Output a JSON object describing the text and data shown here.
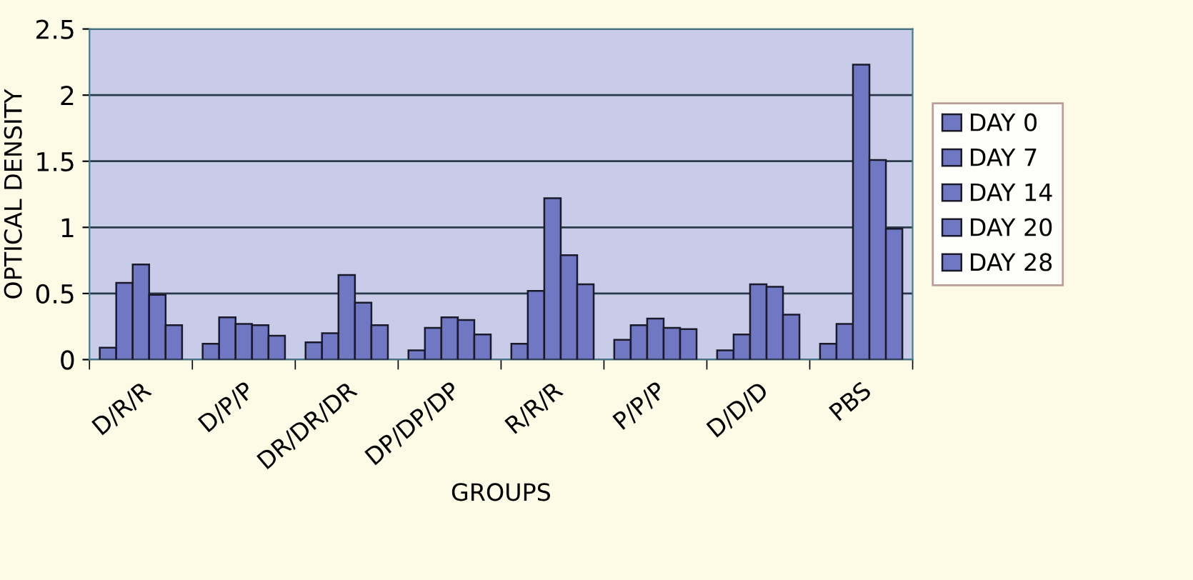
{
  "chart_data": {
    "type": "bar",
    "xlabel": "GROUPS",
    "ylabel": "OPTICAL DENSITY",
    "categories": [
      "D/R/R",
      "D/P/P",
      "DR/DR/DR",
      "DP/DP/DP",
      "R/R/R",
      "P/P/P",
      "D/D/D",
      "PBS"
    ],
    "series": [
      {
        "name": "DAY 0",
        "color": "#7078c4",
        "values": [
          0.09,
          0.12,
          0.13,
          0.07,
          0.12,
          0.15,
          0.07,
          0.12
        ]
      },
      {
        "name": "DAY 7",
        "color": "#7078c4",
        "values": [
          0.58,
          0.32,
          0.2,
          0.24,
          0.52,
          0.26,
          0.19,
          0.27
        ]
      },
      {
        "name": "DAY 14",
        "color": "#7078c4",
        "values": [
          0.72,
          0.27,
          0.64,
          0.32,
          1.22,
          0.31,
          0.57,
          2.23
        ]
      },
      {
        "name": "DAY 20",
        "color": "#7078c4",
        "values": [
          0.49,
          0.26,
          0.43,
          0.3,
          0.79,
          0.24,
          0.55,
          1.51
        ]
      },
      {
        "name": "DAY 28",
        "color": "#7078c4",
        "values": [
          0.26,
          0.18,
          0.26,
          0.19,
          0.57,
          0.23,
          0.34,
          0.99
        ]
      }
    ],
    "ylim": [
      0,
      2.5
    ],
    "yticks": [
      0,
      0.5,
      1,
      1.5,
      2,
      2.5
    ],
    "grid": "y",
    "legend": "right"
  }
}
